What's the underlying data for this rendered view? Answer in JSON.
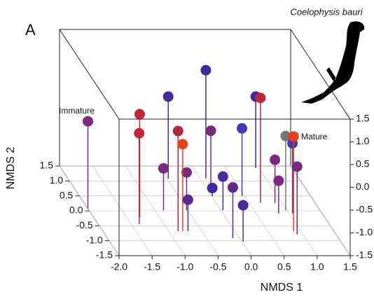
{
  "chart_data": {
    "type": "scatter3d",
    "panel_label": "A",
    "species": "Coelophysis bauri",
    "xlabel": "NMDS 1",
    "ylabel": "NMDS 2",
    "annotations": [
      "Immature",
      "Mature"
    ],
    "x": [
      -2.0,
      -1.3,
      -1.38,
      -0.48,
      -0.87,
      -0.86,
      -0.79,
      -0.52,
      0.09,
      0.06,
      0.01,
      -0.71,
      0.03,
      0.46,
      -0.1,
      0.95,
      0.67,
      0.02,
      0.89,
      0.98,
      0.89,
      1.05,
      0.91,
      0.84
    ],
    "y": [
      0.07,
      -0.21,
      -0.45,
      1.08,
      0.02,
      -0.68,
      -0.68,
      0.02,
      1.08,
      0.73,
      0.49,
      -0.68,
      0.02,
      0.49,
      -0.91,
      1.43,
      0.26,
      -1.03,
      0.26,
      0.02,
      -0.68,
      -0.09,
      -0.79,
      -0.09
    ],
    "z": [
      0.42,
      0.76,
      0.5,
      0.3,
      -0.58,
      0.7,
      0.41,
      -0.67,
      0.88,
      -0.22,
      -1.32,
      -0.81,
      -0.76,
      -0.01,
      -0.39,
      0.07,
      0.81,
      -0.7,
      -0.55,
      0.13,
      0.58,
      0.04,
      -0.01,
      -0.78
    ],
    "colors": [
      "#7a2a7a",
      "#c0283a",
      "#c0283a",
      "#4a2a9a",
      "#7a2a7a",
      "#b0283f",
      "#e8401c",
      "#7a2a7a",
      "#3f2aa0",
      "#7a2a7a",
      "#3f2aa0",
      "#5a2a90",
      "#4a2a9a",
      "#3f3ab0",
      "#5a2a90",
      "#3f2aa0",
      "#c0283a",
      "#4a2a9a",
      "#7a2a7a",
      "#777777",
      "#e8401c",
      "#3f3ab0",
      "#7a2a7a",
      "#7a2a7a"
    ],
    "xlim": [
      -2.0,
      1.5
    ],
    "ylim": [
      -1.5,
      1.5
    ],
    "zlim": [
      -1.5,
      1.5
    ],
    "xticks": [
      {
        "value": -2.0,
        "label": "-2.0"
      },
      {
        "value": -1.5,
        "label": "-1.5"
      },
      {
        "value": -1.0,
        "label": "-1.0"
      },
      {
        "value": -0.5,
        "label": "-0.5"
      },
      {
        "value": 0.0,
        "label": "0.0"
      },
      {
        "value": 0.5,
        "label": "0.5"
      },
      {
        "value": 1.0,
        "label": "1.0"
      },
      {
        "value": 1.5,
        "label": "1.5"
      }
    ],
    "yticks": [
      {
        "value": -1.5,
        "label": "-1.5"
      },
      {
        "value": -1.0,
        "label": "-1.0"
      },
      {
        "value": -0.5,
        "label": "-0.5"
      },
      {
        "value": 0.0,
        "label": "0.0"
      },
      {
        "value": 0.5,
        "label": "0.5"
      },
      {
        "value": 1.0,
        "label": "1.0"
      },
      {
        "value": 1.5,
        "label": "1.5"
      }
    ],
    "zticks": [
      {
        "value": -1.5,
        "label": "-1.5"
      },
      {
        "value": -1.0,
        "label": "-1.0"
      },
      {
        "value": -0.5,
        "label": "-0.5"
      },
      {
        "value": 0.0,
        "label": "0.0"
      },
      {
        "value": 0.5,
        "label": "0.5"
      },
      {
        "value": 1.0,
        "label": "1.0"
      },
      {
        "value": 1.5,
        "label": "1.5"
      }
    ],
    "grid": true
  }
}
